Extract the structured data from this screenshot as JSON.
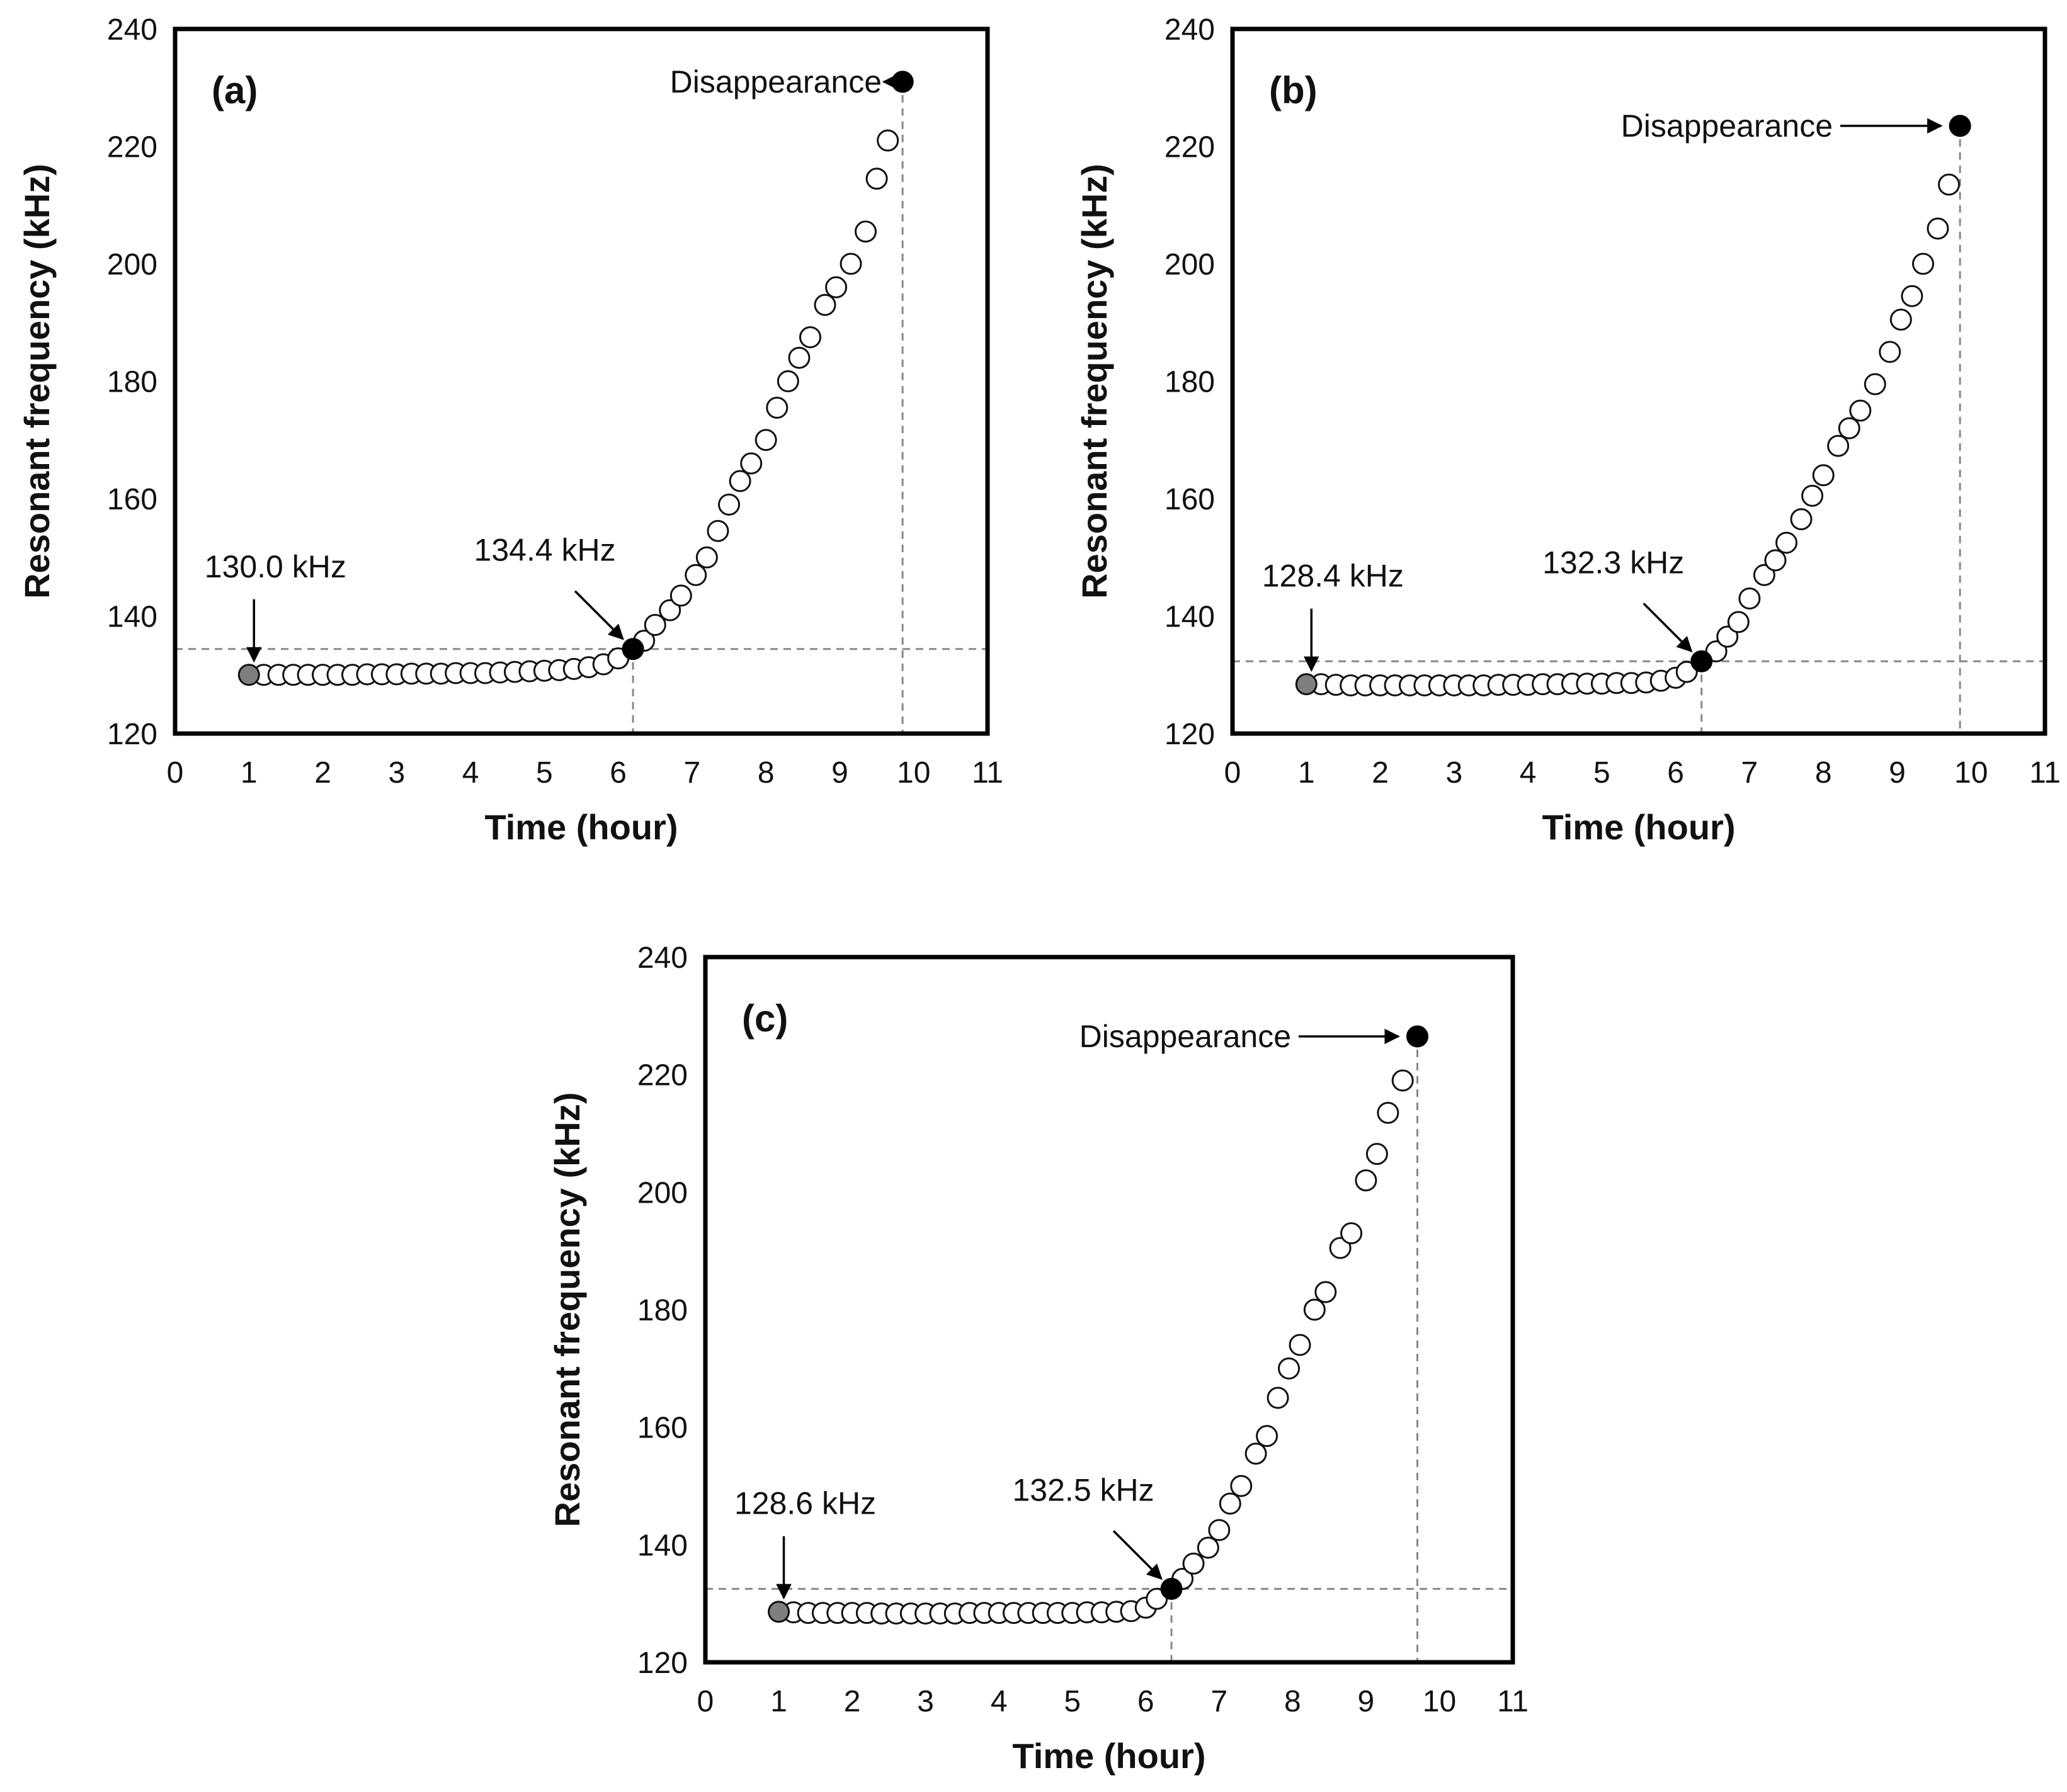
{
  "chart_data": [
    {
      "type": "scatter",
      "panel_label": "(a)",
      "xlabel": "Time (hour)",
      "ylabel": "Resonant frequency (kHz)",
      "xlim": [
        0,
        11
      ],
      "ylim": [
        120,
        240
      ],
      "xticks": [
        "0",
        "1",
        "2",
        "3",
        "4",
        "5",
        "6",
        "7",
        "8",
        "9",
        "10",
        "11"
      ],
      "yticks": [
        "120",
        "140",
        "160",
        "180",
        "200",
        "220",
        "240"
      ],
      "series": [
        {
          "name": "open",
          "x": [
            1.2,
            1.4,
            1.6,
            1.8,
            2.0,
            2.2,
            2.4,
            2.6,
            2.8,
            3.0,
            3.2,
            3.4,
            3.6,
            3.8,
            4.0,
            4.2,
            4.4,
            4.6,
            4.8,
            5.0,
            5.2,
            5.4,
            5.6,
            5.8,
            6.0,
            6.35,
            6.5,
            6.7,
            6.85,
            7.05,
            7.2,
            7.35,
            7.5,
            7.65,
            7.8,
            8.0,
            8.15,
            8.3,
            8.45,
            8.6,
            8.8,
            8.95,
            9.15,
            9.35,
            9.5,
            9.65
          ],
          "y": [
            130.0,
            130.0,
            130.0,
            130.0,
            130.0,
            130.0,
            130.0,
            130.1,
            130.1,
            130.1,
            130.2,
            130.2,
            130.2,
            130.3,
            130.3,
            130.3,
            130.4,
            130.5,
            130.6,
            130.7,
            130.8,
            131.0,
            131.3,
            131.8,
            132.8,
            135.8,
            138.5,
            141.0,
            143.5,
            147.0,
            150.0,
            154.5,
            159.0,
            163.0,
            166.0,
            170.0,
            175.5,
            180.0,
            184.0,
            187.5,
            193.0,
            196.0,
            200.0,
            205.5,
            214.5,
            221.0
          ]
        },
        {
          "name": "start",
          "x": [
            1.0
          ],
          "y": [
            130.0
          ]
        },
        {
          "name": "onset",
          "x": [
            6.2
          ],
          "y": [
            134.4
          ]
        },
        {
          "name": "disappearance",
          "x": [
            9.85
          ],
          "y": [
            231.0
          ]
        }
      ],
      "start_label": "130.0 kHz",
      "onset_label": "134.4 kHz",
      "end_label": "Disappearance"
    },
    {
      "type": "scatter",
      "panel_label": "(b)",
      "xlabel": "Time (hour)",
      "ylabel": "Resonant frequency (kHz)",
      "xlim": [
        0,
        11
      ],
      "ylim": [
        120,
        240
      ],
      "xticks": [
        "0",
        "1",
        "2",
        "3",
        "4",
        "5",
        "6",
        "7",
        "8",
        "9",
        "10",
        "11"
      ],
      "yticks": [
        "120",
        "140",
        "160",
        "180",
        "200",
        "220",
        "240"
      ],
      "series": [
        {
          "name": "open",
          "x": [
            1.2,
            1.4,
            1.6,
            1.8,
            2.0,
            2.2,
            2.4,
            2.6,
            2.8,
            3.0,
            3.2,
            3.4,
            3.6,
            3.8,
            4.0,
            4.2,
            4.4,
            4.6,
            4.8,
            5.0,
            5.2,
            5.4,
            5.6,
            5.8,
            6.0,
            6.15,
            6.55,
            6.7,
            6.85,
            7.0,
            7.2,
            7.35,
            7.5,
            7.7,
            7.85,
            8.0,
            8.2,
            8.35,
            8.5,
            8.7,
            8.9,
            9.05,
            9.2,
            9.35,
            9.55,
            9.7
          ],
          "y": [
            128.4,
            128.3,
            128.2,
            128.2,
            128.2,
            128.2,
            128.2,
            128.2,
            128.2,
            128.2,
            128.2,
            128.2,
            128.3,
            128.3,
            128.3,
            128.4,
            128.4,
            128.5,
            128.5,
            128.5,
            128.6,
            128.6,
            128.7,
            129.0,
            129.5,
            130.5,
            134.0,
            136.5,
            139.0,
            143.0,
            147.0,
            149.5,
            152.5,
            156.5,
            160.5,
            164.0,
            169.0,
            172.0,
            175.0,
            179.5,
            185.0,
            190.5,
            194.5,
            200.0,
            206.0,
            213.5
          ]
        },
        {
          "name": "start",
          "x": [
            1.0
          ],
          "y": [
            128.4
          ]
        },
        {
          "name": "onset",
          "x": [
            6.35
          ],
          "y": [
            132.3
          ]
        },
        {
          "name": "disappearance",
          "x": [
            9.85
          ],
          "y": [
            223.5
          ]
        }
      ],
      "start_label": "128.4 kHz",
      "onset_label": "132.3 kHz",
      "end_label": "Disappearance"
    },
    {
      "type": "scatter",
      "panel_label": "(c)",
      "xlabel": "Time (hour)",
      "ylabel": "Resonant frequency (kHz)",
      "xlim": [
        0,
        11
      ],
      "ylim": [
        120,
        240
      ],
      "xticks": [
        "0",
        "1",
        "2",
        "3",
        "4",
        "5",
        "6",
        "7",
        "8",
        "9",
        "10",
        "11"
      ],
      "yticks": [
        "120",
        "140",
        "160",
        "180",
        "200",
        "220",
        "240"
      ],
      "series": [
        {
          "name": "open",
          "x": [
            1.2,
            1.4,
            1.6,
            1.8,
            2.0,
            2.2,
            2.4,
            2.6,
            2.8,
            3.0,
            3.2,
            3.4,
            3.6,
            3.8,
            4.0,
            4.2,
            4.4,
            4.6,
            4.8,
            5.0,
            5.2,
            5.4,
            5.6,
            5.8,
            6.0,
            6.15,
            6.5,
            6.65,
            6.85,
            7.0,
            7.15,
            7.3,
            7.5,
            7.65,
            7.8,
            7.95,
            8.1,
            8.3,
            8.45,
            8.65,
            8.8,
            9.0,
            9.15,
            9.3,
            9.5
          ],
          "y": [
            128.5,
            128.4,
            128.4,
            128.4,
            128.4,
            128.4,
            128.3,
            128.3,
            128.3,
            128.3,
            128.3,
            128.3,
            128.4,
            128.4,
            128.4,
            128.4,
            128.4,
            128.4,
            128.4,
            128.4,
            128.5,
            128.5,
            128.6,
            128.7,
            129.3,
            130.8,
            134.2,
            136.8,
            139.5,
            142.5,
            147.0,
            150.0,
            155.5,
            158.5,
            165.0,
            170.0,
            174.0,
            180.0,
            183.0,
            190.5,
            193.0,
            202.0,
            206.5,
            213.5,
            219.0
          ]
        },
        {
          "name": "start",
          "x": [
            1.0
          ],
          "y": [
            128.6
          ]
        },
        {
          "name": "onset",
          "x": [
            6.35
          ],
          "y": [
            132.5
          ]
        },
        {
          "name": "disappearance",
          "x": [
            9.7
          ],
          "y": [
            226.5
          ]
        }
      ],
      "start_label": "128.6 kHz",
      "onset_label": "132.5 kHz",
      "end_label": "Disappearance"
    }
  ]
}
